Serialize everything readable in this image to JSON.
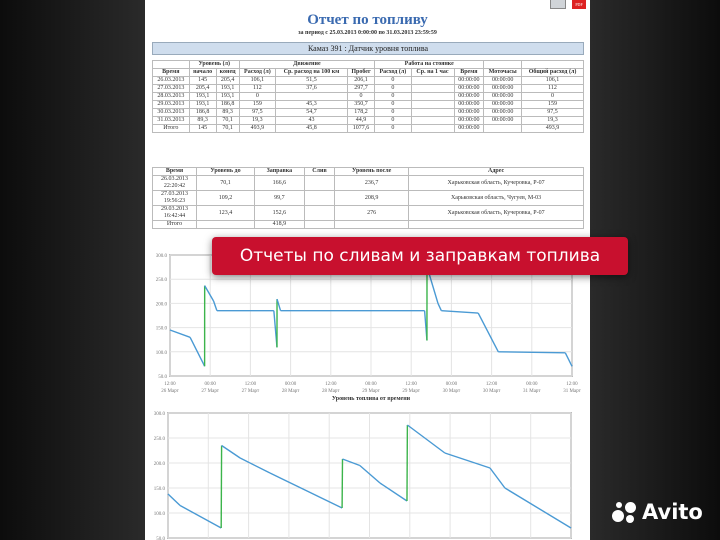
{
  "report": {
    "title": "Отчет по топливу",
    "period": "за период с 25.03.2013 0:00:00 по 31.03.2013 23:59:59",
    "vehicle": "Камаз 391 : Датчик уровня топлива",
    "icons": [
      "printer-icon",
      "pdf-icon"
    ]
  },
  "summary": {
    "group_headers": [
      "Уровень (л)",
      "Движение",
      "Работа на стоянке"
    ],
    "headers": [
      "Время",
      "начало",
      "конец",
      "Расход (л)",
      "Ср. расход на 100 км",
      "Пробег",
      "Расход (л)",
      "Ср. на 1 час",
      "Время",
      "Моточасы",
      "Общий расход (л)"
    ],
    "rows": [
      [
        "26.03.2013",
        "145",
        "205,4",
        "106,1",
        "51,5",
        "206,1",
        "0",
        "",
        "00:00:00",
        "00:00:00",
        "106,1"
      ],
      [
        "27.03.2013",
        "205,4",
        "193,1",
        "112",
        "37,6",
        "297,7",
        "0",
        "",
        "00:00:00",
        "00:00:00",
        "112"
      ],
      [
        "28.03.2013",
        "193,1",
        "193,1",
        "0",
        "",
        "0",
        "0",
        "",
        "00:00:00",
        "00:00:00",
        "0"
      ],
      [
        "29.03.2013",
        "193,1",
        "186,8",
        "159",
        "45,3",
        "350,7",
        "0",
        "",
        "00:00:00",
        "00:00:00",
        "159"
      ],
      [
        "30.03.2013",
        "186,8",
        "89,3",
        "97,5",
        "54,7",
        "178,2",
        "0",
        "",
        "00:00:00",
        "00:00:00",
        "97,5"
      ],
      [
        "31.03.2013",
        "89,3",
        "70,1",
        "19,3",
        "43",
        "44,9",
        "0",
        "",
        "00:00:00",
        "00:00:00",
        "19,3"
      ],
      [
        "Итого",
        "145",
        "70,1",
        "493,9",
        "45,8",
        "1077,6",
        "0",
        "",
        "00:00:00",
        "",
        "493,9"
      ]
    ]
  },
  "refuels": {
    "headers": [
      "Время",
      "Уровень до",
      "Заправка",
      "Слив",
      "Уровень после",
      "Адрес"
    ],
    "rows": [
      [
        "26.03.2013 22:20:42",
        "70,1",
        "166,6",
        "",
        "236,7",
        "Харьковская область, Кучеровка, Р-07"
      ],
      [
        "27.03.2013 19:56:23",
        "109,2",
        "99,7",
        "",
        "208,9",
        "Харьковская область, Чугуев, М-03"
      ],
      [
        "29.03.2013 16:42:44",
        "123,4",
        "152,6",
        "",
        "276",
        "Харьковская область, Кучеровка, Р-07"
      ],
      [
        "Итого",
        "",
        "418,9",
        "",
        "",
        ""
      ]
    ]
  },
  "banner": "Отчеты по сливам и заправкам топлива",
  "brand": "Avito",
  "chart_data": [
    {
      "type": "line",
      "title": "Уровень топлива от времени",
      "ylim": [
        50,
        300
      ],
      "yticks": [
        "300.0",
        "250.0",
        "200.0",
        "150.0",
        "100.0",
        "50.0"
      ],
      "xticks": [
        [
          "12:00",
          "26 Март"
        ],
        [
          "00:00",
          "27 Март"
        ],
        [
          "12:00",
          "27 Март"
        ],
        [
          "00:00",
          "28 Март"
        ],
        [
          "12:00",
          "28 Март"
        ],
        [
          "00:00",
          "29 Март"
        ],
        [
          "12:00",
          "29 Март"
        ],
        [
          "00:00",
          "30 Март"
        ],
        [
          "12:00",
          "30 Март"
        ],
        [
          "00:00",
          "31 Март"
        ],
        [
          "12:00",
          "31 Март"
        ]
      ],
      "xlim": [
        "2013-03-26T12:00",
        "2013-03-31T12:00"
      ],
      "grid": true,
      "colors": {
        "level": "#4a9ad4",
        "refuel": "#3cb44b"
      },
      "points": [
        [
          "2013-03-26T12:00",
          145
        ],
        [
          "2013-03-26T18:00",
          130
        ],
        [
          "2013-03-26T22:00",
          75
        ],
        [
          "2013-03-26T22:20",
          70.1
        ],
        [
          "2013-03-26T22:21",
          236.7
        ],
        [
          "2013-03-27T01:00",
          205
        ],
        [
          "2013-03-27T02:00",
          185
        ],
        [
          "2013-03-27T19:00",
          185
        ],
        [
          "2013-03-27T19:56",
          109.2
        ],
        [
          "2013-03-27T19:57",
          208.9
        ],
        [
          "2013-03-27T21:00",
          185
        ],
        [
          "2013-03-29T16:00",
          185
        ],
        [
          "2013-03-29T16:42",
          123.4
        ],
        [
          "2013-03-29T16:43",
          276
        ],
        [
          "2013-03-29T20:00",
          200
        ],
        [
          "2013-03-29T21:00",
          185
        ],
        [
          "2013-03-30T08:00",
          180
        ],
        [
          "2013-03-30T14:00",
          100
        ],
        [
          "2013-03-31T10:00",
          98
        ],
        [
          "2013-03-31T12:00",
          70
        ]
      ]
    },
    {
      "type": "line",
      "ylim": [
        50,
        300
      ],
      "yticks": [
        "300.0",
        "250.0",
        "200.0",
        "150.0",
        "100.0",
        "50.0"
      ],
      "xlim": [
        0,
        100
      ],
      "grid": true,
      "points": [
        [
          0,
          138
        ],
        [
          3,
          115
        ],
        [
          13.2,
          70
        ],
        [
          13.3,
          235
        ],
        [
          17.9,
          210
        ],
        [
          25.3,
          180
        ],
        [
          43.2,
          110
        ],
        [
          43.3,
          208
        ],
        [
          47.6,
          195
        ],
        [
          52.6,
          160
        ],
        [
          59.3,
          124
        ],
        [
          59.4,
          276
        ],
        [
          68.7,
          220
        ],
        [
          79.9,
          190
        ],
        [
          83.6,
          150
        ],
        [
          100,
          70
        ]
      ]
    }
  ]
}
